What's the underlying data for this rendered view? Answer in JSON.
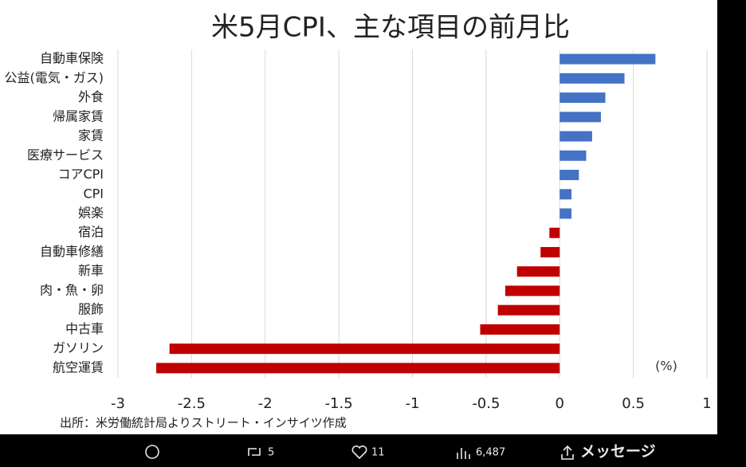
{
  "chart_data": {
    "type": "barh",
    "title": "米5月CPI、主な項目の前月比",
    "categories": [
      "自動車保険",
      "公益(電気・ガス)",
      "外食",
      "帰属家賃",
      "家賃",
      "医療サービス",
      "コアCPI",
      "CPI",
      "娯楽",
      "宿泊",
      "自動車修繕",
      "新車",
      "肉・魚・卵",
      "服飾",
      "中古車",
      "ガソリン",
      "航空運賃"
    ],
    "values": [
      0.65,
      0.44,
      0.31,
      0.28,
      0.22,
      0.18,
      0.13,
      0.08,
      0.08,
      -0.07,
      -0.13,
      -0.29,
      -0.37,
      -0.42,
      -0.54,
      -2.65,
      -2.74
    ],
    "color_positive": "#4472c4",
    "color_negative": "#c00000",
    "xlim": [
      -3,
      1
    ],
    "xticks": [
      -3,
      -2.5,
      -2,
      -1.5,
      -1,
      -0.5,
      0,
      0.5,
      1
    ],
    "grid": true,
    "unit_label": "(%)",
    "source": "出所：米労働統計局よりストリート・インサイツ作成"
  },
  "tweet": {
    "retweets": "5",
    "likes": "11",
    "views": "6,487",
    "message": "メッセージ"
  }
}
